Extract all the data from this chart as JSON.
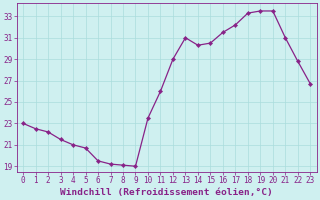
{
  "x": [
    0,
    1,
    2,
    3,
    4,
    5,
    6,
    7,
    8,
    9,
    10,
    11,
    12,
    13,
    14,
    15,
    16,
    17,
    18,
    19,
    20,
    21,
    22,
    23
  ],
  "y": [
    23.0,
    22.5,
    22.2,
    21.5,
    21.0,
    20.7,
    19.5,
    19.2,
    19.1,
    19.0,
    23.5,
    26.0,
    29.0,
    31.0,
    30.3,
    30.5,
    31.5,
    32.2,
    33.3,
    33.5,
    33.5,
    31.0,
    28.8,
    26.7
  ],
  "line_color": "#882288",
  "marker": "D",
  "markersize": 2.2,
  "linewidth": 0.9,
  "background_color": "#cff0f0",
  "grid_color": "#aadddd",
  "xlabel": "Windchill (Refroidissement éolien,°C)",
  "ylabel": "",
  "title": "",
  "xlim": [
    -0.5,
    23.5
  ],
  "ylim": [
    18.5,
    34.2
  ],
  "yticks": [
    19,
    21,
    23,
    25,
    27,
    29,
    31,
    33
  ],
  "xticks": [
    0,
    1,
    2,
    3,
    4,
    5,
    6,
    7,
    8,
    9,
    10,
    11,
    12,
    13,
    14,
    15,
    16,
    17,
    18,
    19,
    20,
    21,
    22,
    23
  ],
  "tick_color": "#882288",
  "label_color": "#882288",
  "tick_fontsize": 5.5,
  "xlabel_fontsize": 6.8
}
